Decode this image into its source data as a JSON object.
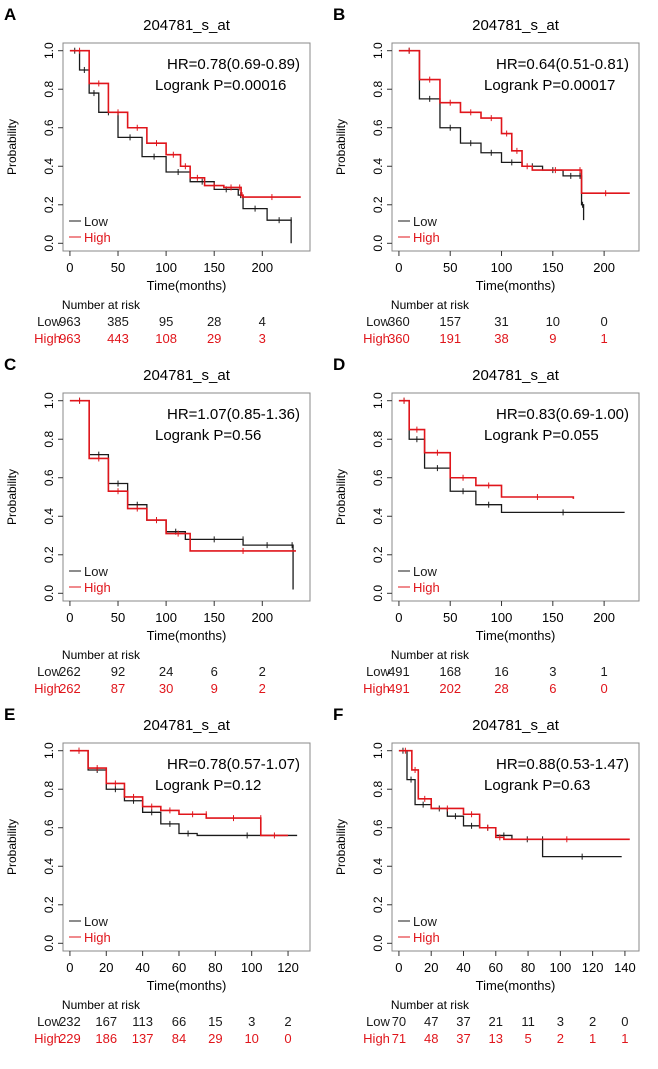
{
  "colors": {
    "low": "#1a1a1a",
    "high": "#e0151b",
    "box": "#888888"
  },
  "chart_data": [
    {
      "panel": "A",
      "type": "line",
      "title": "204781_s_at",
      "xlabel": "Time(months)",
      "ylabel": "Probability",
      "xlim": [
        0,
        240
      ],
      "ylim": [
        0,
        1
      ],
      "xticks": [
        0,
        50,
        100,
        150,
        200
      ],
      "yticks": [
        "0.0",
        "0.2",
        "0.4",
        "0.6",
        "0.8",
        "1.0"
      ],
      "hr": "HR=0.78(0.69-0.89)",
      "p": "Logrank P=0.00016",
      "legend": "bottom-left",
      "series": [
        {
          "name": "Low",
          "x": [
            0,
            10,
            20,
            30,
            50,
            75,
            100,
            125,
            150,
            175,
            180,
            205,
            230,
            230
          ],
          "y": [
            1,
            0.9,
            0.78,
            0.68,
            0.55,
            0.45,
            0.37,
            0.32,
            0.28,
            0.25,
            0.18,
            0.12,
            0.12,
            0.0
          ]
        },
        {
          "name": "High",
          "x": [
            0,
            20,
            40,
            60,
            80,
            100,
            115,
            125,
            140,
            160,
            175,
            178,
            180,
            240
          ],
          "y": [
            1,
            0.83,
            0.68,
            0.6,
            0.52,
            0.46,
            0.4,
            0.34,
            0.3,
            0.29,
            0.29,
            0.25,
            0.24,
            0.24
          ]
        }
      ],
      "risk": {
        "header": "Number at risk",
        "Low": [
          "963",
          "385",
          "95",
          "28",
          "4"
        ],
        "High": [
          "963",
          "443",
          "108",
          "29",
          "3"
        ]
      }
    },
    {
      "panel": "B",
      "type": "line",
      "title": "204781_s_at",
      "xlabel": "Time(months)",
      "ylabel": "Probability",
      "xlim": [
        0,
        225
      ],
      "ylim": [
        0,
        1
      ],
      "xticks": [
        0,
        50,
        100,
        150,
        200
      ],
      "yticks": [
        "0.0",
        "0.2",
        "0.4",
        "0.6",
        "0.8",
        "1.0"
      ],
      "hr": "HR=0.64(0.51-0.81)",
      "p": "Logrank P=0.00017",
      "legend": "bottom-left",
      "series": [
        {
          "name": "Low",
          "x": [
            0,
            20,
            40,
            60,
            80,
            100,
            120,
            140,
            160,
            175,
            178,
            180
          ],
          "y": [
            1,
            0.75,
            0.6,
            0.52,
            0.47,
            0.42,
            0.4,
            0.38,
            0.35,
            0.35,
            0.2,
            0.12
          ]
        },
        {
          "name": "High",
          "x": [
            0,
            20,
            40,
            60,
            80,
            100,
            110,
            120,
            130,
            175,
            178,
            225
          ],
          "y": [
            1,
            0.85,
            0.73,
            0.68,
            0.65,
            0.57,
            0.48,
            0.4,
            0.38,
            0.38,
            0.26,
            0.26
          ]
        }
      ],
      "risk": {
        "header": "Number at risk",
        "Low": [
          "360",
          "157",
          "31",
          "10",
          "0"
        ],
        "High": [
          "360",
          "191",
          "38",
          "9",
          "1"
        ]
      }
    },
    {
      "panel": "C",
      "type": "line",
      "title": "204781_s_at",
      "xlabel": "Time(months)",
      "ylabel": "Probability",
      "xlim": [
        0,
        240
      ],
      "ylim": [
        0,
        1
      ],
      "xticks": [
        0,
        50,
        100,
        150,
        200
      ],
      "yticks": [
        "0.0",
        "0.2",
        "0.4",
        "0.6",
        "0.8",
        "1.0"
      ],
      "hr": "HR=1.07(0.85-1.36)",
      "p": "Logrank P=0.56",
      "legend": "bottom-left",
      "series": [
        {
          "name": "Low",
          "x": [
            0,
            20,
            40,
            60,
            80,
            100,
            120,
            180,
            180,
            230,
            232
          ],
          "y": [
            1,
            0.72,
            0.57,
            0.46,
            0.38,
            0.32,
            0.28,
            0.28,
            0.25,
            0.25,
            0.02
          ]
        },
        {
          "name": "High",
          "x": [
            0,
            20,
            40,
            60,
            80,
            100,
            125,
            235
          ],
          "y": [
            1,
            0.7,
            0.53,
            0.44,
            0.38,
            0.31,
            0.22,
            0.22
          ]
        }
      ],
      "risk": {
        "header": "Number at risk",
        "Low": [
          "262",
          "92",
          "24",
          "6",
          "2"
        ],
        "High": [
          "262",
          "87",
          "30",
          "9",
          "2"
        ]
      }
    },
    {
      "panel": "D",
      "type": "line",
      "title": "204781_s_at",
      "xlabel": "Time(months)",
      "ylabel": "Probability",
      "xlim": [
        0,
        225
      ],
      "ylim": [
        0,
        1
      ],
      "xticks": [
        0,
        50,
        100,
        150,
        200
      ],
      "yticks": [
        "0.0",
        "0.2",
        "0.4",
        "0.6",
        "0.8",
        "1.0"
      ],
      "hr": "HR=0.83(0.69-1.00)",
      "p": "Logrank P=0.055",
      "legend": "bottom-left",
      "series": [
        {
          "name": "Low",
          "x": [
            0,
            10,
            25,
            50,
            75,
            100,
            220
          ],
          "y": [
            1,
            0.8,
            0.65,
            0.53,
            0.46,
            0.42,
            0.42
          ]
        },
        {
          "name": "High",
          "x": [
            0,
            10,
            25,
            50,
            75,
            100,
            170
          ],
          "y": [
            1,
            0.85,
            0.73,
            0.6,
            0.56,
            0.5,
            0.49
          ]
        }
      ],
      "risk": {
        "header": "Number at risk",
        "Low": [
          "491",
          "168",
          "16",
          "3",
          "1"
        ],
        "High": [
          "491",
          "202",
          "28",
          "6",
          "0"
        ]
      }
    },
    {
      "panel": "E",
      "type": "line",
      "title": "204781_s_at",
      "xlabel": "Time(months)",
      "ylabel": "Probability",
      "xlim": [
        0,
        127
      ],
      "ylim": [
        0,
        1
      ],
      "xticks": [
        0,
        20,
        40,
        60,
        80,
        100,
        120
      ],
      "yticks": [
        "0.0",
        "0.2",
        "0.4",
        "0.6",
        "0.8",
        "1.0"
      ],
      "hr": "HR=0.78(0.57-1.07)",
      "p": "Logrank P=0.12",
      "legend": "bottom-left",
      "series": [
        {
          "name": "Low",
          "x": [
            0,
            10,
            20,
            30,
            40,
            50,
            60,
            70,
            125
          ],
          "y": [
            1,
            0.9,
            0.8,
            0.74,
            0.68,
            0.62,
            0.57,
            0.56,
            0.56
          ]
        },
        {
          "name": "High",
          "x": [
            0,
            10,
            20,
            30,
            40,
            50,
            60,
            75,
            75,
            105,
            105,
            120
          ],
          "y": [
            1,
            0.91,
            0.83,
            0.76,
            0.71,
            0.69,
            0.67,
            0.67,
            0.65,
            0.65,
            0.56,
            0.56
          ]
        }
      ],
      "risk": {
        "header": "Number at risk",
        "Low": [
          "232",
          "167",
          "113",
          "66",
          "15",
          "3",
          "2"
        ],
        "High": [
          "229",
          "186",
          "137",
          "84",
          "29",
          "10",
          "0"
        ]
      }
    },
    {
      "panel": "F",
      "type": "line",
      "title": "204781_s_at",
      "xlabel": "Time(months)",
      "ylabel": "Probability",
      "xlim": [
        0,
        143
      ],
      "ylim": [
        0,
        1
      ],
      "xticks": [
        0,
        20,
        40,
        60,
        80,
        100,
        120,
        140
      ],
      "yticks": [
        "0.0",
        "0.2",
        "0.4",
        "0.6",
        "0.8",
        "1.0"
      ],
      "hr": "HR=0.88(0.53-1.47)",
      "p": "Logrank P=0.63",
      "legend": "bottom-left",
      "series": [
        {
          "name": "Low",
          "x": [
            0,
            5,
            10,
            20,
            30,
            40,
            50,
            60,
            70,
            89,
            89,
            138
          ],
          "y": [
            1,
            0.85,
            0.72,
            0.7,
            0.66,
            0.61,
            0.6,
            0.56,
            0.54,
            0.54,
            0.45,
            0.45
          ]
        },
        {
          "name": "High",
          "x": [
            0,
            8,
            12,
            20,
            40,
            50,
            60,
            65,
            143
          ],
          "y": [
            1,
            0.9,
            0.75,
            0.7,
            0.67,
            0.6,
            0.55,
            0.54,
            0.54
          ]
        }
      ],
      "risk": {
        "header": "Number at risk",
        "Low": [
          "70",
          "47",
          "37",
          "21",
          "11",
          "3",
          "2",
          "0"
        ],
        "High": [
          "71",
          "48",
          "37",
          "13",
          "5",
          "2",
          "1",
          "1"
        ]
      }
    }
  ]
}
